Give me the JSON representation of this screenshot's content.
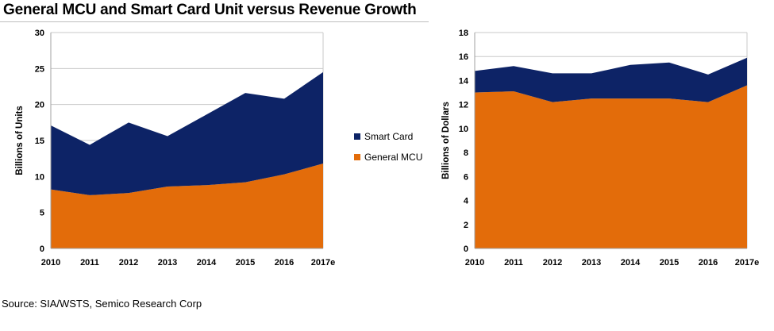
{
  "title": "General MCU and Smart Card Unit versus Revenue Growth",
  "source": "Source: SIA/WSTS, Semico Research Corp",
  "colors": {
    "smart_card": "#0d2366",
    "general_mcu": "#e36c0a",
    "grid": "#c8c8c8",
    "axis": "#a0a0a0"
  },
  "chart_data": [
    {
      "type": "area",
      "stacked": true,
      "categories": [
        "2010",
        "2011",
        "2012",
        "2013",
        "2014",
        "2015",
        "2016",
        "2017e"
      ],
      "ylabel": "Billions of Units",
      "ylim": [
        0,
        30
      ],
      "yticks": [
        "0",
        "5",
        "10",
        "15",
        "20",
        "25",
        "30"
      ],
      "grid": true,
      "legend_position": "right",
      "series": [
        {
          "name": "General MCU",
          "values": [
            8.2,
            7.4,
            7.7,
            8.6,
            8.8,
            9.2,
            10.3,
            11.8
          ]
        },
        {
          "name": "Smart Card",
          "values": [
            8.9,
            7.0,
            9.8,
            7.0,
            9.8,
            12.4,
            10.5,
            12.7
          ]
        }
      ],
      "stacked_totals": [
        17.1,
        14.4,
        17.5,
        15.6,
        18.6,
        21.6,
        20.8,
        24.5
      ]
    },
    {
      "type": "area",
      "stacked": true,
      "categories": [
        "2010",
        "2011",
        "2012",
        "2013",
        "2014",
        "2015",
        "2016",
        "2017e"
      ],
      "ylabel": "Billions of Dollars",
      "ylim": [
        0,
        18
      ],
      "yticks": [
        "0",
        "2",
        "4",
        "6",
        "8",
        "10",
        "12",
        "14",
        "16",
        "18"
      ],
      "grid": true,
      "series": [
        {
          "name": "General MCU",
          "values": [
            13.0,
            13.1,
            12.2,
            12.5,
            12.5,
            12.5,
            12.2,
            13.6
          ]
        },
        {
          "name": "Smart Card",
          "values": [
            1.8,
            2.1,
            2.4,
            2.1,
            2.8,
            3.0,
            2.3,
            2.3
          ]
        }
      ],
      "stacked_totals": [
        14.8,
        15.2,
        14.6,
        14.6,
        15.3,
        15.5,
        14.5,
        15.9
      ]
    }
  ]
}
